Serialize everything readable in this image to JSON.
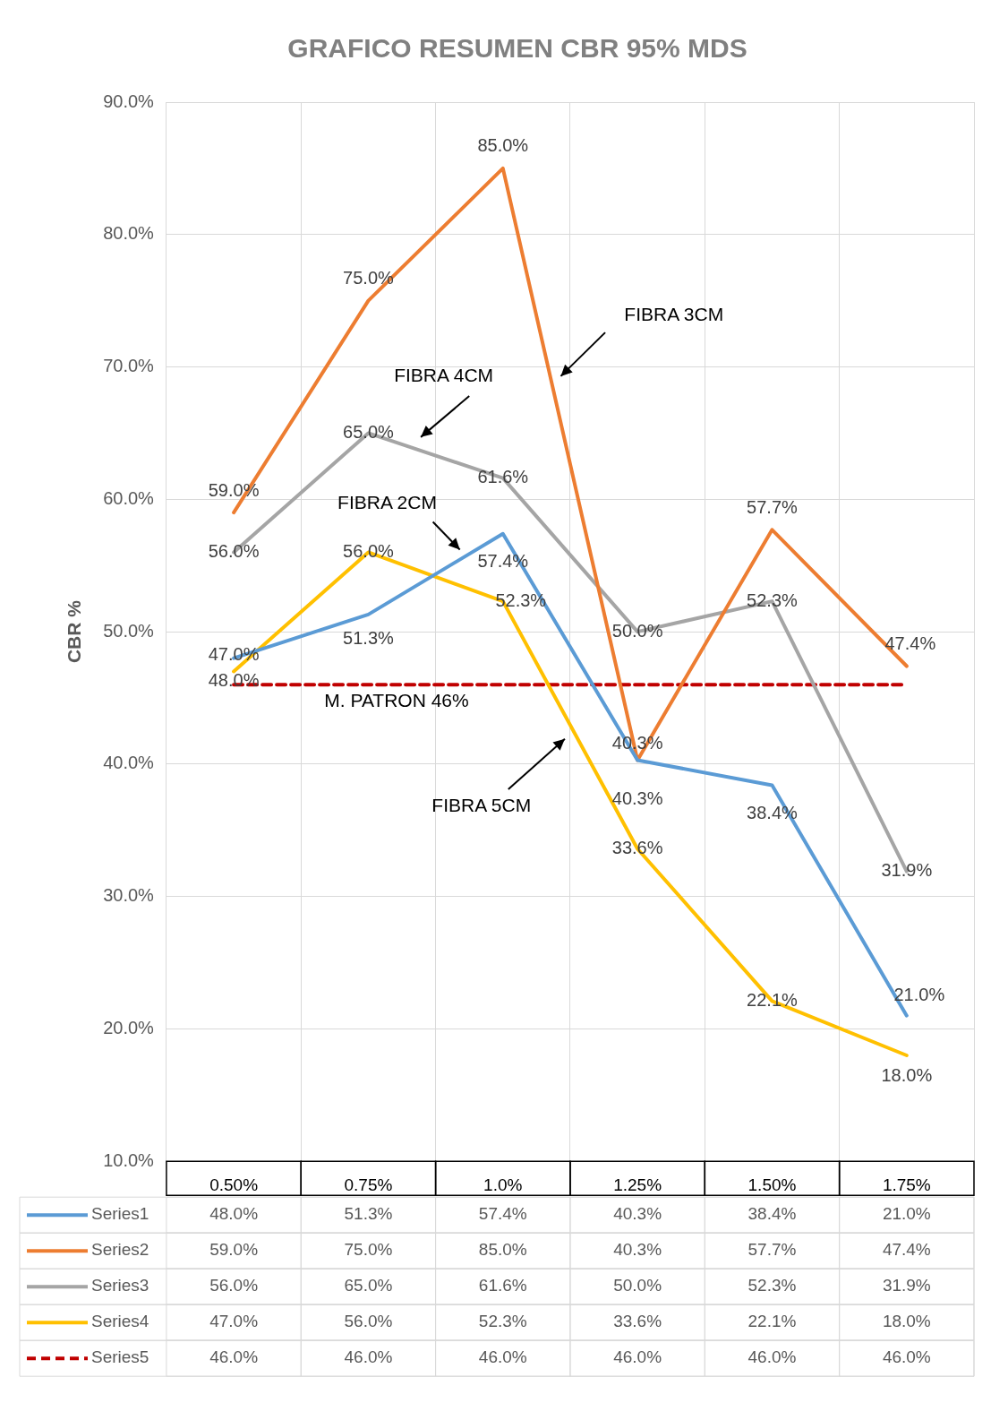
{
  "chart_data": {
    "type": "line",
    "title": "GRAFICO RESUMEN CBR 95% MDS",
    "ylabel": "CBR %",
    "categories": [
      "0.50%",
      "0.75%",
      "1.0%",
      "1.25%",
      "1.50%",
      "1.75%"
    ],
    "series": [
      {
        "name": "Series1",
        "color": "#5b9bd5",
        "values": [
          48.0,
          51.3,
          57.4,
          40.3,
          38.4,
          21.0
        ],
        "value_labels": [
          "48.0%",
          "51.3%",
          "57.4%",
          "40.3%",
          "38.4%",
          "21.0%"
        ]
      },
      {
        "name": "Series2",
        "color": "#ed7d31",
        "values": [
          59.0,
          75.0,
          85.0,
          40.3,
          57.7,
          47.4
        ],
        "value_labels": [
          "59.0%",
          "75.0%",
          "85.0%",
          "40.3%",
          "57.7%",
          "47.4%"
        ]
      },
      {
        "name": "Series3",
        "color": "#a5a5a5",
        "values": [
          56.0,
          65.0,
          61.6,
          50.0,
          52.3,
          31.9
        ],
        "value_labels": [
          "56.0%",
          "65.0%",
          "61.6%",
          "50.0%",
          "52.3%",
          "31.9%"
        ]
      },
      {
        "name": "Series4",
        "color": "#ffc000",
        "values": [
          47.0,
          56.0,
          52.3,
          33.6,
          22.1,
          18.0
        ],
        "value_labels": [
          "47.0%",
          "56.0%",
          "52.3%",
          "33.6%",
          "22.1%",
          "18.0%"
        ]
      },
      {
        "name": "Series5",
        "color": "#c00000",
        "line_style": "dashed",
        "values": [
          46.0,
          46.0,
          46.0,
          46.0,
          46.0,
          46.0
        ],
        "value_labels": [
          "46.0%",
          "46.0%",
          "46.0%",
          "46.0%",
          "46.0%",
          "46.0%"
        ]
      }
    ],
    "ylim": [
      10,
      90
    ],
    "yticks": [
      {
        "value": 10,
        "label": "10.0%"
      },
      {
        "value": 20,
        "label": "20.0%"
      },
      {
        "value": 30,
        "label": "30.0%"
      },
      {
        "value": 40,
        "label": "40.0%"
      },
      {
        "value": 50,
        "label": "50.0%"
      },
      {
        "value": 60,
        "label": "60.0%"
      },
      {
        "value": 70,
        "label": "70.0%"
      },
      {
        "value": 80,
        "label": "80.0%"
      },
      {
        "value": 90,
        "label": "90.0%"
      }
    ],
    "grid": true,
    "marker": "none",
    "line_style": "solid",
    "legend": "bottom",
    "annotations": [
      "FIBRA 3CM",
      "FIBRA 4CM",
      "FIBRA 2CM",
      "M. PATRON 46%",
      "FIBRA 5CM"
    ]
  }
}
